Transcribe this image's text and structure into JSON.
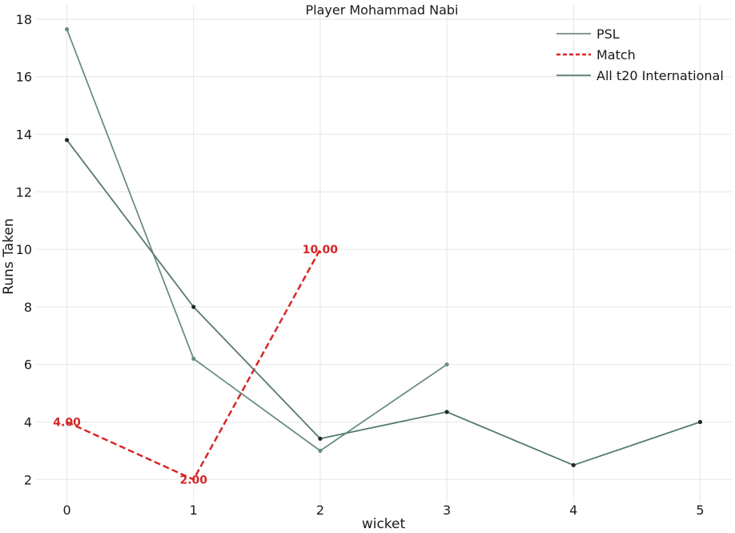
{
  "chart_data": {
    "type": "line",
    "title": "Player Mohammad Nabi",
    "xlabel": "wicket",
    "ylabel": "Runs Taken",
    "xlim": [
      -0.25,
      5.25
    ],
    "ylim": [
      1.2,
      18.5
    ],
    "x_ticks": [
      0,
      1,
      2,
      3,
      4,
      5
    ],
    "y_ticks": [
      2,
      4,
      6,
      8,
      10,
      12,
      14,
      16,
      18
    ],
    "grid": true,
    "legend_position": "top-right",
    "series": [
      {
        "name": "PSL",
        "color": "#6b8e80",
        "style": "solid",
        "marker_color": "#6b8e80",
        "x": [
          0,
          1,
          2,
          3
        ],
        "y": [
          17.65,
          6.2,
          3.0,
          6.0
        ]
      },
      {
        "name": "Match",
        "color": "#d62728",
        "style": "dashed",
        "x": [
          0,
          1,
          2
        ],
        "y": [
          4.0,
          2.0,
          10.0
        ],
        "labels": [
          "4.00",
          "2.00",
          "10.00"
        ]
      },
      {
        "name": "All t20 International",
        "color": "#577a6d",
        "style": "solid",
        "marker_color": "#1f2a25",
        "x": [
          0,
          1,
          2,
          3,
          4,
          5
        ],
        "y": [
          13.8,
          8.0,
          3.42,
          4.35,
          2.5,
          4.0
        ]
      }
    ]
  }
}
